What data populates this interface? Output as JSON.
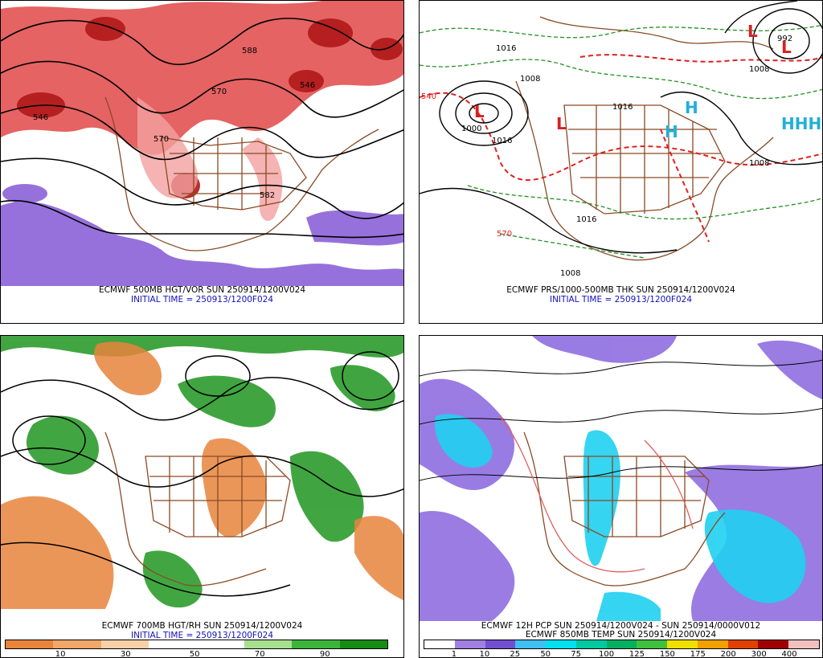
{
  "panels": [
    {
      "title": "ECMWF 500MB HGT/VOR SUN 250914/1200V024",
      "initial": "INITIAL TIME = 250913/1200F024"
    },
    {
      "title": "ECMWF PRS/1000-500MB THK SUN 250914/1200V024",
      "initial": "INITIAL TIME = 250913/1200F024"
    },
    {
      "title": "ECMWF 700MB HGT/RH SUN 250914/1200V024",
      "initial": "INITIAL TIME = 250913/1200F024"
    },
    {
      "title": "ECMWF 12H PCP SUN 250914/1200V024 - SUN 250914/0000V012",
      "subtitle": "ECMWF 850MB TEMP SUN 250914/1200V024"
    }
  ],
  "rh_legend": {
    "ticks": [
      "10",
      "30",
      "50",
      "70",
      "90"
    ],
    "colors": [
      "#e8843c",
      "#f0a868",
      "#f8d0a8",
      "#ffffff",
      "#ffffff",
      "#a8e090",
      "#3cb43c",
      "#168c16"
    ]
  },
  "pcp_legend": {
    "ticks": [
      "1",
      "10",
      "25",
      "50",
      "75",
      "100",
      "125",
      "150",
      "175",
      "200",
      "300",
      "400"
    ],
    "colors": [
      "#ffffff",
      "#a080e0",
      "#7050d0",
      "#40c0f0",
      "#00e0f0",
      "#00c8a0",
      "#00b060",
      "#40c040",
      "#f0e000",
      "#f0a000",
      "#e04000",
      "#a00000",
      "#f0c0c0"
    ]
  },
  "labels_top_left": [
    "546",
    "570",
    "582",
    "588",
    "546",
    "570"
  ],
  "labels_top_right": [
    "1016",
    "1008",
    "1000",
    "1016",
    "992",
    "1008",
    "1016",
    "570",
    "540",
    "1008",
    "1016",
    "1008"
  ],
  "colors": {
    "vort_red": "#d83030",
    "vort_purple": "#8060d8",
    "coast_brown": "#8a4a24",
    "thk_red": "#e02020",
    "thk_green": "#209020"
  }
}
